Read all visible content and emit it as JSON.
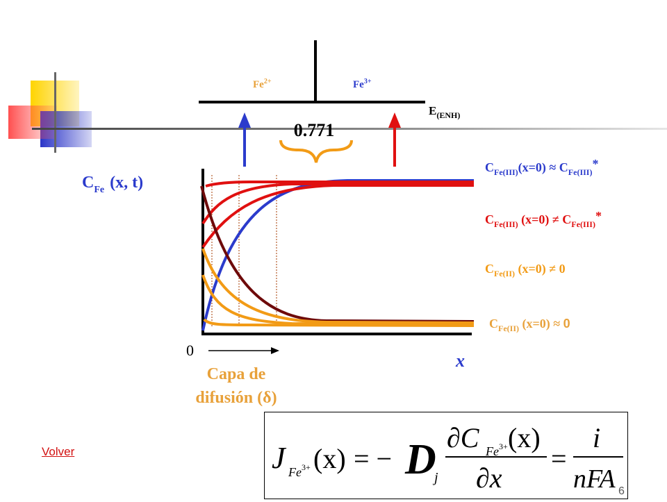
{
  "colors": {
    "red": "#e01010",
    "blue": "#2b3bcc",
    "orange": "#f29b16",
    "darkred": "#6e0a0a",
    "yellow": "#ffd400",
    "gold": "#e8a13a"
  },
  "ions": {
    "fe2": {
      "base": "Fe",
      "sup": "2+"
    },
    "fe3": {
      "base": "Fe",
      "sup": "3+"
    }
  },
  "potential_axis": {
    "base": "E",
    "sub": "(ENH)"
  },
  "potential_value": "0.771",
  "y_axis": {
    "base": "C",
    "sub": "Fe",
    "args": "(x, t)"
  },
  "x_axis": {
    "label": "x",
    "origin": "0"
  },
  "diffusion_layer": {
    "line1": "Capa de",
    "line2": "difusión (δ)"
  },
  "curve_labels": [
    {
      "c": "C",
      "sub": "Fe(III)",
      "cond": "(x=0) ≈ C",
      "sub2": "Fe(III)",
      "star": "*"
    },
    {
      "c": "C",
      "sub": "Fe(III)",
      "cond": " (x=0) ≠ C",
      "sub2": "Fe(III)",
      "star": "*"
    },
    {
      "c": "C",
      "sub": "Fe(II)",
      "cond": " (x=0) ≠ 0"
    },
    {
      "c": "C",
      "sub": "Fe(II)",
      "cond": " (x=0) ≈ ",
      "tail": "0"
    }
  ],
  "formula": {
    "J": "J",
    "J_sub_base": "Fe",
    "J_sub_sup": "3+",
    "arg": "(x)",
    "eq1": "= −",
    "D": "D",
    "D_sub": "j",
    "num_partial": "∂C",
    "num_sub_base": "Fe",
    "num_sub_sup": "3+",
    "num_arg": "(x)",
    "den": "∂x",
    "eq2": "=",
    "rhs_num": "i",
    "rhs_den": "nFA"
  },
  "link": {
    "label": "Volver"
  },
  "page_number": "6"
}
